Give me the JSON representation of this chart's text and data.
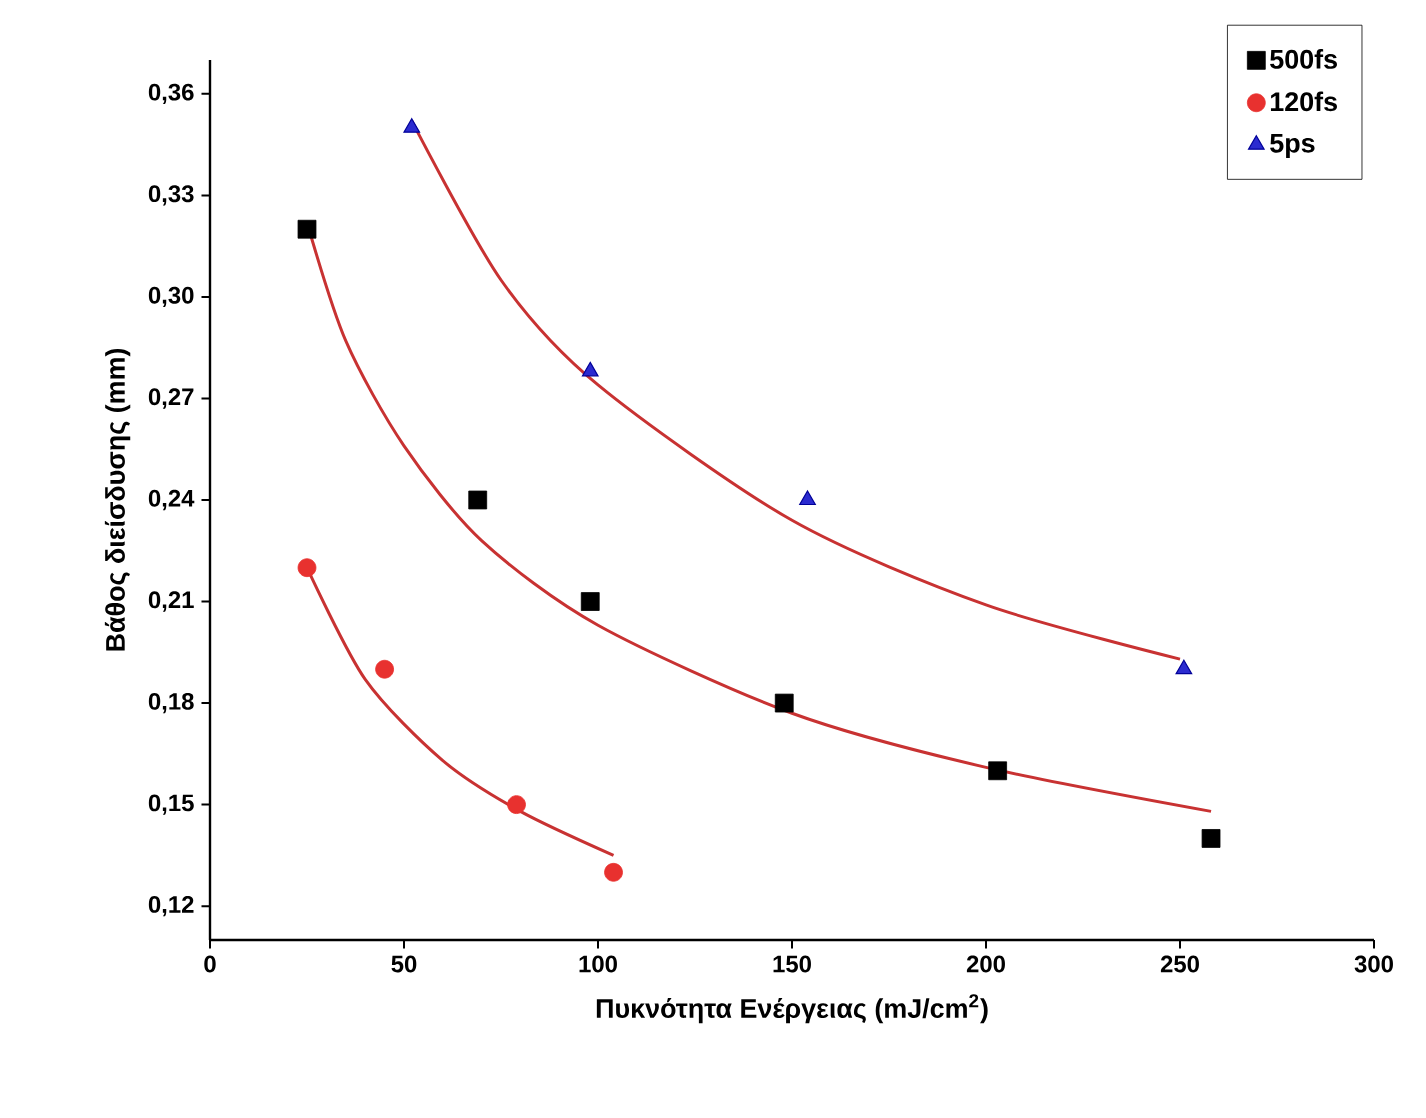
{
  "chart_data": {
    "type": "scatter",
    "xlabel": "Πυκνότητα Ενέργειας (mJ/cm$^{2}$)",
    "ylabel": "Βάθος διείσδυσης (mm)",
    "xlim": [
      0,
      300
    ],
    "ylim": [
      0.11,
      0.37
    ],
    "xticks": [
      0,
      50,
      100,
      150,
      200,
      250,
      300
    ],
    "yticks": [
      {
        "value": 0.12,
        "label": "0,12"
      },
      {
        "value": 0.15,
        "label": "0,15"
      },
      {
        "value": 0.18,
        "label": "0,18"
      },
      {
        "value": 0.21,
        "label": "0,21"
      },
      {
        "value": 0.24,
        "label": "0,24"
      },
      {
        "value": 0.27,
        "label": "0,27"
      },
      {
        "value": 0.3,
        "label": "0,30"
      },
      {
        "value": 0.33,
        "label": "0,33"
      },
      {
        "value": 0.36,
        "label": "0,36"
      }
    ],
    "legend": "top right",
    "grid": false,
    "series": [
      {
        "name": "500fs",
        "marker": "square",
        "color": "#000000",
        "x": [
          25,
          69,
          98,
          148,
          203,
          258
        ],
        "values": [
          0.32,
          0.24,
          0.21,
          0.18,
          0.16,
          0.14
        ]
      },
      {
        "name": "120fs",
        "marker": "circle",
        "color": "#e8312f",
        "x": [
          25,
          45,
          79,
          104
        ],
        "values": [
          0.22,
          0.19,
          0.15,
          0.13
        ]
      },
      {
        "name": "5ps",
        "marker": "triangle",
        "color": "#2b2bd0",
        "x": [
          52,
          98,
          154,
          251
        ],
        "values": [
          0.35,
          0.278,
          0.24,
          0.19
        ]
      },
      {
        "type": "line",
        "color": "#c83232",
        "x": [
          25,
          35,
          50,
          70,
          100,
          150,
          200,
          258
        ],
        "values": [
          0.322,
          0.287,
          0.256,
          0.228,
          0.203,
          0.177,
          0.161,
          0.148
        ]
      },
      {
        "type": "line",
        "color": "#c83232",
        "x": [
          25,
          40,
          60,
          80,
          104
        ],
        "values": [
          0.22,
          0.187,
          0.163,
          0.148,
          0.135
        ]
      },
      {
        "type": "line",
        "color": "#c83232",
        "x": [
          52,
          75,
          100,
          150,
          200,
          250
        ],
        "values": [
          0.352,
          0.305,
          0.274,
          0.234,
          0.209,
          0.193
        ]
      }
    ]
  }
}
